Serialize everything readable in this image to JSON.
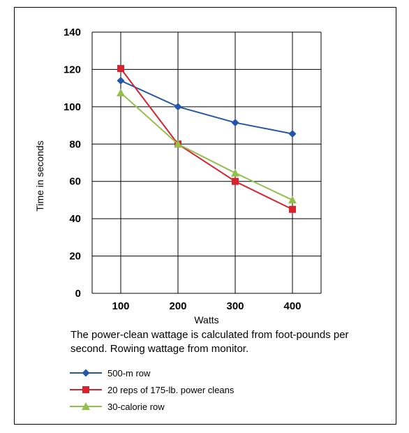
{
  "chart_data": {
    "type": "line",
    "xlabel": "Watts",
    "ylabel": "Time in seconds",
    "x": [
      100,
      200,
      300,
      400
    ],
    "xlim": [
      50,
      450
    ],
    "ylim": [
      0,
      140
    ],
    "yticks": [
      0,
      20,
      40,
      60,
      80,
      100,
      120,
      140
    ],
    "grid": true,
    "legend_position": "bottom",
    "caption": "The power-clean wattage is calculated from foot-pounds per second. Rowing wattage from monitor.",
    "series": [
      {
        "name": "500-m row",
        "values": [
          114,
          100,
          91.5,
          85.5
        ],
        "color": "#2457a8",
        "marker": "diamond"
      },
      {
        "name": "20 reps of 175-lb. power cleans",
        "values": [
          120.5,
          80,
          60,
          45
        ],
        "color": "#d7232e",
        "marker": "square"
      },
      {
        "name": "30-calorie row",
        "values": [
          107.5,
          80,
          64.5,
          50
        ],
        "color": "#93c04d",
        "marker": "triangle"
      }
    ]
  }
}
